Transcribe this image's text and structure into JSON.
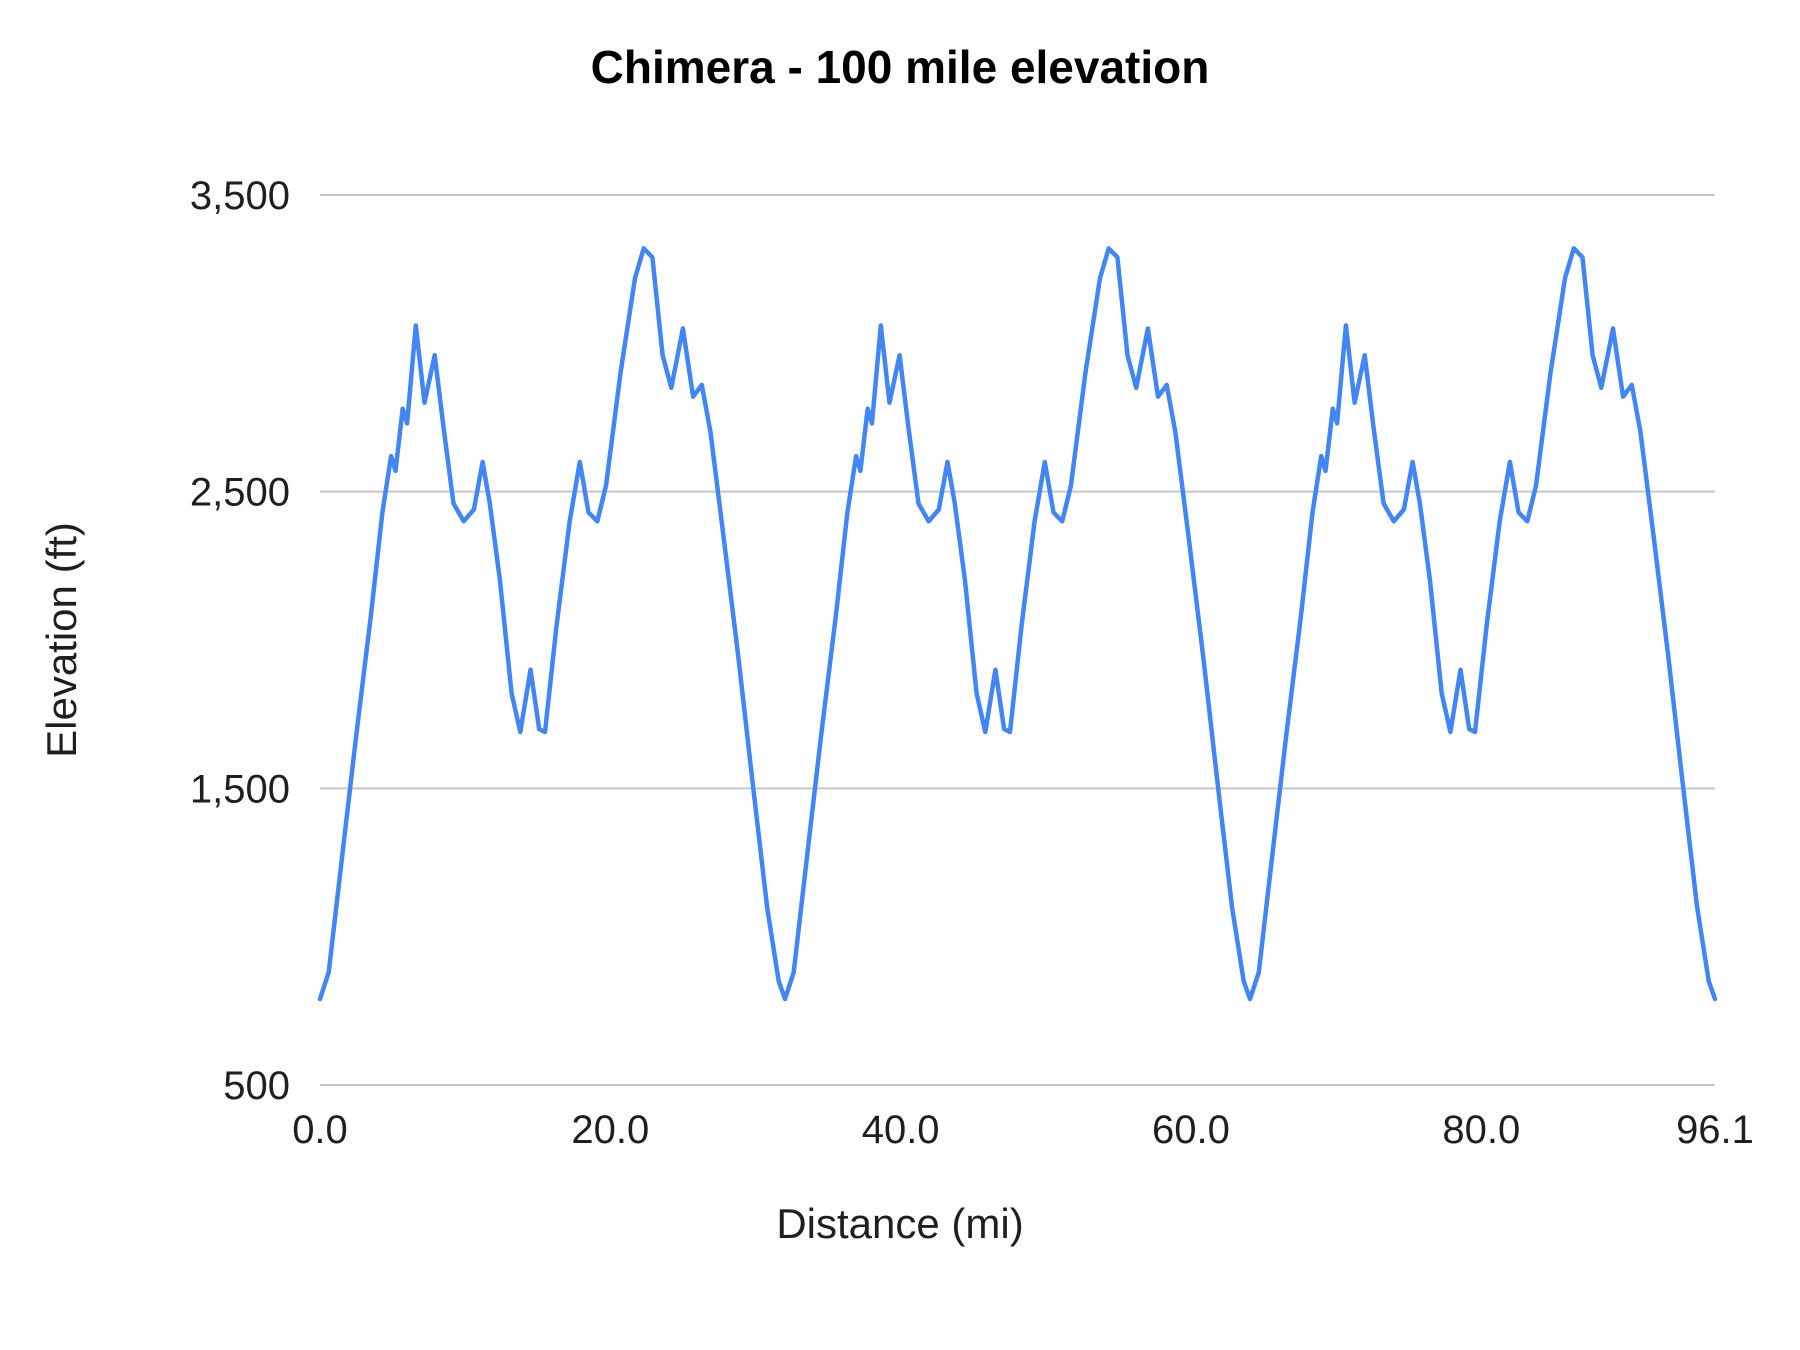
{
  "chart": {
    "title": "Chimera - 100 mile elevation",
    "x_axis_title": "Distance (mi)",
    "y_axis_title": "Elevation (ft)"
  },
  "colors": {
    "line": "#4285f4",
    "grid": "#c7c7c7",
    "tick_label": "#1f1f1f",
    "title": "#000000",
    "background": "#ffffff"
  },
  "chart_data": {
    "type": "line",
    "title": "Chimera - 100 mile elevation",
    "xlabel": "Distance (mi)",
    "ylabel": "Elevation (ft)",
    "xlim": [
      0,
      96.1
    ],
    "ylim": [
      500,
      3500
    ],
    "x_ticks": {
      "values": [
        0,
        20,
        40,
        60,
        80,
        96.1
      ],
      "labels": [
        "0.0",
        "20.0",
        "40.0",
        "60.0",
        "80.0",
        "96.1"
      ]
    },
    "y_ticks": {
      "values": [
        3500,
        2500,
        1500,
        500
      ],
      "labels": [
        "3,500",
        "2,500",
        "1,500",
        "500"
      ]
    },
    "grid": "horizontal gridlines only",
    "legend": "none",
    "series_name": "Elevation (ft)",
    "loops": 3,
    "loop_length_mi": 32.03,
    "description": "Elevation profile of a 96.1 mi course made of three nearly identical ~32 mi loops; each loop climbs from ~790 ft to twin peaks near 3,060 ft, dips to ~1,700 ft, rises to a high point ~3,320 ft, then descends back to ~790 ft.",
    "points": [
      [
        0,
        790
      ],
      [
        0.6,
        880
      ],
      [
        1.5,
        1260
      ],
      [
        2.5,
        1680
      ],
      [
        3.5,
        2080
      ],
      [
        4.3,
        2430
      ],
      [
        4.9,
        2620
      ],
      [
        5.2,
        2570
      ],
      [
        5.7,
        2780
      ],
      [
        6,
        2730
      ],
      [
        6.6,
        3060
      ],
      [
        7.2,
        2800
      ],
      [
        7.9,
        2960
      ],
      [
        8.5,
        2720
      ],
      [
        9.2,
        2460
      ],
      [
        9.9,
        2400
      ],
      [
        10.6,
        2440
      ],
      [
        11.2,
        2600
      ],
      [
        11.7,
        2460
      ],
      [
        12.4,
        2200
      ],
      [
        13.2,
        1820
      ],
      [
        13.8,
        1690
      ],
      [
        14.5,
        1900
      ],
      [
        15.1,
        1700
      ],
      [
        15.5,
        1690
      ],
      [
        16.3,
        2050
      ],
      [
        17.2,
        2400
      ],
      [
        17.9,
        2600
      ],
      [
        18.5,
        2430
      ],
      [
        19.1,
        2400
      ],
      [
        19.7,
        2520
      ],
      [
        20.7,
        2900
      ],
      [
        21.7,
        3220
      ],
      [
        22.3,
        3320
      ],
      [
        22.9,
        3290
      ],
      [
        23.6,
        2960
      ],
      [
        24.2,
        2850
      ],
      [
        25,
        3050
      ],
      [
        25.7,
        2820
      ],
      [
        26.3,
        2860
      ],
      [
        26.9,
        2700
      ],
      [
        27.8,
        2350
      ],
      [
        28.8,
        1950
      ],
      [
        29.8,
        1520
      ],
      [
        30.8,
        1100
      ],
      [
        31.6,
        850
      ],
      [
        32.03,
        790
      ],
      [
        32.63,
        880
      ],
      [
        33.53,
        1260
      ],
      [
        34.53,
        1680
      ],
      [
        35.53,
        2080
      ],
      [
        36.33,
        2430
      ],
      [
        36.93,
        2620
      ],
      [
        37.23,
        2570
      ],
      [
        37.73,
        2780
      ],
      [
        38.03,
        2730
      ],
      [
        38.63,
        3060
      ],
      [
        39.23,
        2800
      ],
      [
        39.93,
        2960
      ],
      [
        40.53,
        2720
      ],
      [
        41.23,
        2460
      ],
      [
        41.93,
        2400
      ],
      [
        42.63,
        2440
      ],
      [
        43.23,
        2600
      ],
      [
        43.73,
        2460
      ],
      [
        44.43,
        2200
      ],
      [
        45.23,
        1820
      ],
      [
        45.83,
        1690
      ],
      [
        46.53,
        1900
      ],
      [
        47.13,
        1700
      ],
      [
        47.53,
        1690
      ],
      [
        48.33,
        2050
      ],
      [
        49.23,
        2400
      ],
      [
        49.93,
        2600
      ],
      [
        50.53,
        2430
      ],
      [
        51.13,
        2400
      ],
      [
        51.73,
        2520
      ],
      [
        52.73,
        2900
      ],
      [
        53.73,
        3220
      ],
      [
        54.33,
        3320
      ],
      [
        54.93,
        3290
      ],
      [
        55.63,
        2960
      ],
      [
        56.23,
        2850
      ],
      [
        57.03,
        3050
      ],
      [
        57.73,
        2820
      ],
      [
        58.33,
        2860
      ],
      [
        58.93,
        2700
      ],
      [
        59.83,
        2350
      ],
      [
        60.83,
        1950
      ],
      [
        61.83,
        1520
      ],
      [
        62.83,
        1100
      ],
      [
        63.63,
        850
      ],
      [
        64.07,
        790
      ],
      [
        64.67,
        880
      ],
      [
        65.57,
        1260
      ],
      [
        66.57,
        1680
      ],
      [
        67.57,
        2080
      ],
      [
        68.37,
        2430
      ],
      [
        68.97,
        2620
      ],
      [
        69.27,
        2570
      ],
      [
        69.77,
        2780
      ],
      [
        70.07,
        2730
      ],
      [
        70.67,
        3060
      ],
      [
        71.27,
        2800
      ],
      [
        71.97,
        2960
      ],
      [
        72.57,
        2720
      ],
      [
        73.27,
        2460
      ],
      [
        73.97,
        2400
      ],
      [
        74.67,
        2440
      ],
      [
        75.27,
        2600
      ],
      [
        75.77,
        2460
      ],
      [
        76.47,
        2200
      ],
      [
        77.27,
        1820
      ],
      [
        77.87,
        1690
      ],
      [
        78.57,
        1900
      ],
      [
        79.17,
        1700
      ],
      [
        79.57,
        1690
      ],
      [
        80.37,
        2050
      ],
      [
        81.27,
        2400
      ],
      [
        81.97,
        2600
      ],
      [
        82.57,
        2430
      ],
      [
        83.17,
        2400
      ],
      [
        83.77,
        2520
      ],
      [
        84.77,
        2900
      ],
      [
        85.77,
        3220
      ],
      [
        86.37,
        3320
      ],
      [
        86.97,
        3290
      ],
      [
        87.67,
        2960
      ],
      [
        88.27,
        2850
      ],
      [
        89.07,
        3050
      ],
      [
        89.77,
        2820
      ],
      [
        90.37,
        2860
      ],
      [
        90.97,
        2700
      ],
      [
        91.87,
        2350
      ],
      [
        92.87,
        1950
      ],
      [
        93.87,
        1520
      ],
      [
        94.87,
        1100
      ],
      [
        95.67,
        850
      ],
      [
        96.1,
        790
      ]
    ]
  }
}
